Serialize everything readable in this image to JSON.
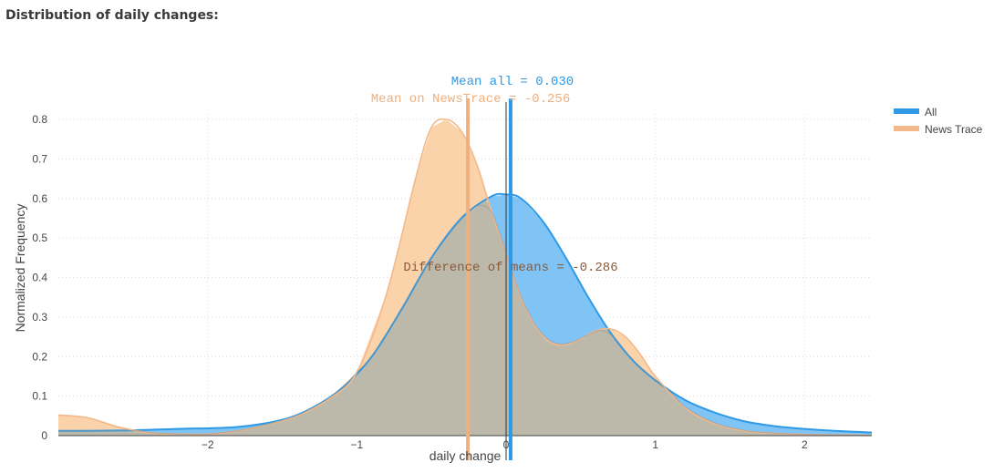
{
  "page": {
    "title": "Distribution of daily changes:"
  },
  "colors": {
    "all_line": "#2e9ae6",
    "all_fill": "#80c4f5",
    "news_line": "#f3b98a",
    "news_fill": "#fbd3ab",
    "overlap_fill": "#bcb9ab",
    "overlap_line": "#8e8e8a",
    "mean_all_line": "#2e9ae6",
    "mean_news_line": "#eeb07f",
    "annotation_diff": "#8a5a3a"
  },
  "chart_data": {
    "type": "area",
    "xlabel": "daily change",
    "ylabel": "Normalized Frequency",
    "xlim": [
      -3.0,
      2.45
    ],
    "ylim": [
      0,
      0.85
    ],
    "x_ticks": [
      -2,
      -1,
      0,
      1,
      2
    ],
    "x_tick_labels": [
      "−2",
      "−1",
      "0",
      "1",
      "2"
    ],
    "y_ticks": [
      0,
      0.1,
      0.2,
      0.3,
      0.4,
      0.5,
      0.6,
      0.7,
      0.8
    ],
    "y_tick_labels": [
      "0",
      "0.1",
      "0.2",
      "0.3",
      "0.4",
      "0.5",
      "0.6",
      "0.7",
      "0.8"
    ],
    "grid": "dotted",
    "legend_position": "top-right",
    "series": [
      {
        "name": "All",
        "x": [
          -3.0,
          -2.6,
          -2.2,
          -1.8,
          -1.5,
          -1.3,
          -1.1,
          -0.9,
          -0.7,
          -0.5,
          -0.3,
          -0.1,
          0.0,
          0.1,
          0.25,
          0.4,
          0.55,
          0.7,
          0.85,
          1.0,
          1.2,
          1.4,
          1.6,
          1.8,
          2.0,
          2.2,
          2.45
        ],
        "y": [
          0.012,
          0.013,
          0.017,
          0.022,
          0.04,
          0.07,
          0.12,
          0.2,
          0.32,
          0.45,
          0.55,
          0.605,
          0.61,
          0.6,
          0.54,
          0.45,
          0.35,
          0.26,
          0.19,
          0.14,
          0.09,
          0.058,
          0.036,
          0.024,
          0.017,
          0.012,
          0.008
        ]
      },
      {
        "name": "News Trace",
        "x": [
          -3.0,
          -2.8,
          -2.6,
          -2.4,
          -2.2,
          -2.0,
          -1.8,
          -1.6,
          -1.4,
          -1.2,
          -1.0,
          -0.8,
          -0.6,
          -0.5,
          -0.4,
          -0.3,
          -0.2,
          -0.1,
          0.0,
          0.1,
          0.2,
          0.3,
          0.4,
          0.5,
          0.6,
          0.7,
          0.8,
          0.9,
          1.0,
          1.2,
          1.4,
          1.6,
          1.8,
          2.0,
          2.2,
          2.45
        ],
        "y": [
          0.052,
          0.045,
          0.022,
          0.008,
          0.004,
          0.004,
          0.012,
          0.028,
          0.05,
          0.09,
          0.16,
          0.36,
          0.66,
          0.78,
          0.8,
          0.77,
          0.69,
          0.57,
          0.46,
          0.35,
          0.275,
          0.235,
          0.23,
          0.245,
          0.265,
          0.27,
          0.25,
          0.205,
          0.15,
          0.07,
          0.03,
          0.012,
          0.006,
          0.003,
          0.002,
          0.001
        ]
      }
    ],
    "vertical_lines": [
      {
        "name": "Mean all",
        "x": 0.03
      },
      {
        "name": "Mean on NewsTrace",
        "x": -0.256
      },
      {
        "name": "zero reference",
        "x": 0.0
      }
    ],
    "annotations": {
      "mean_all": "Mean all = 0.030",
      "mean_news": "Mean on NewsTrace = -0.256",
      "difference": "Difference of means = -0.286"
    }
  }
}
